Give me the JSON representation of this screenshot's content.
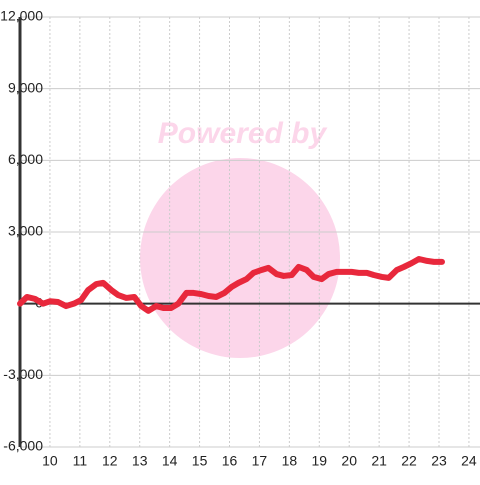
{
  "chart_data": {
    "type": "line",
    "watermark": "Powered by",
    "x": [
      9,
      9.23,
      9.5,
      9.77,
      10,
      10.27,
      10.54,
      10.8,
      11.04,
      11.28,
      11.55,
      11.78,
      12.05,
      12.28,
      12.55,
      12.82,
      13.05,
      13.29,
      13.55,
      13.79,
      14.05,
      14.29,
      14.56,
      14.8,
      15.06,
      15.3,
      15.56,
      15.83,
      16.07,
      16.3,
      16.57,
      16.8,
      17.07,
      17.3,
      17.57,
      17.81,
      18.08,
      18.31,
      18.58,
      18.81,
      19.08,
      19.31,
      19.58,
      19.82,
      20.08,
      20.32,
      20.59,
      20.82,
      21.09,
      21.32,
      21.59,
      21.83,
      22.09,
      22.33,
      22.6,
      22.83,
      23.1
    ],
    "series": [
      {
        "color": "#e8283c",
        "values": [
          0,
          280,
          200,
          0,
          100,
          70,
          -100,
          0,
          150,
          570,
          820,
          870,
          570,
          360,
          240,
          280,
          -100,
          -300,
          -100,
          -180,
          -180,
          0,
          450,
          450,
          400,
          320,
          280,
          450,
          700,
          870,
          1030,
          1290,
          1410,
          1500,
          1240,
          1160,
          1200,
          1540,
          1410,
          1120,
          1030,
          1240,
          1330,
          1330,
          1330,
          1290,
          1290,
          1200,
          1120,
          1080,
          1410,
          1540,
          1700,
          1870,
          1790,
          1750,
          1750
        ]
      }
    ],
    "xlim": [
      9,
      24.37
    ],
    "xticks": [
      10,
      11,
      12,
      13,
      14,
      15,
      16,
      17,
      18,
      19,
      20,
      21,
      22,
      23,
      24
    ],
    "ylim": [
      -6000,
      12000
    ],
    "yticks": [
      {
        "value": -6000,
        "label": "-6,000"
      },
      {
        "value": -3000,
        "label": "-3,000"
      },
      0,
      {
        "value": 3000,
        "label": "3,000"
      },
      {
        "value": 6000,
        "label": "6,000"
      },
      {
        "value": 9000,
        "label": "9,000"
      },
      {
        "value": 12000,
        "label": "12,000"
      }
    ],
    "grid": true
  }
}
